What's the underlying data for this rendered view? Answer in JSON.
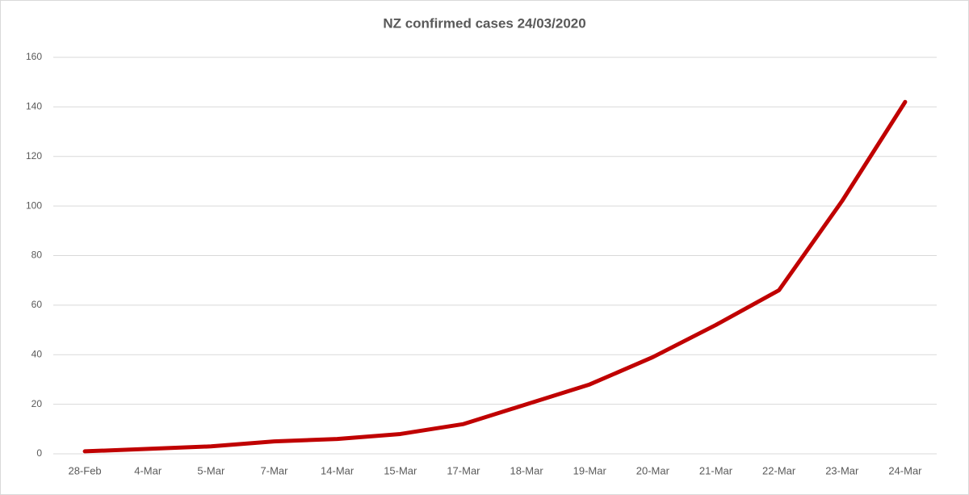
{
  "chart_data": {
    "type": "line",
    "title": "NZ confirmed cases 24/03/2020",
    "categories": [
      "28-Feb",
      "4-Mar",
      "5-Mar",
      "7-Mar",
      "14-Mar",
      "15-Mar",
      "17-Mar",
      "18-Mar",
      "19-Mar",
      "20-Mar",
      "21-Mar",
      "22-Mar",
      "23-Mar",
      "24-Mar"
    ],
    "values": [
      1,
      2,
      3,
      5,
      6,
      8,
      12,
      20,
      28,
      39,
      52,
      66,
      102,
      142
    ],
    "color": "#c00000",
    "ylim": [
      0,
      160
    ],
    "yticks": [
      0,
      20,
      40,
      60,
      80,
      100,
      120,
      140,
      160
    ],
    "grid": true
  }
}
